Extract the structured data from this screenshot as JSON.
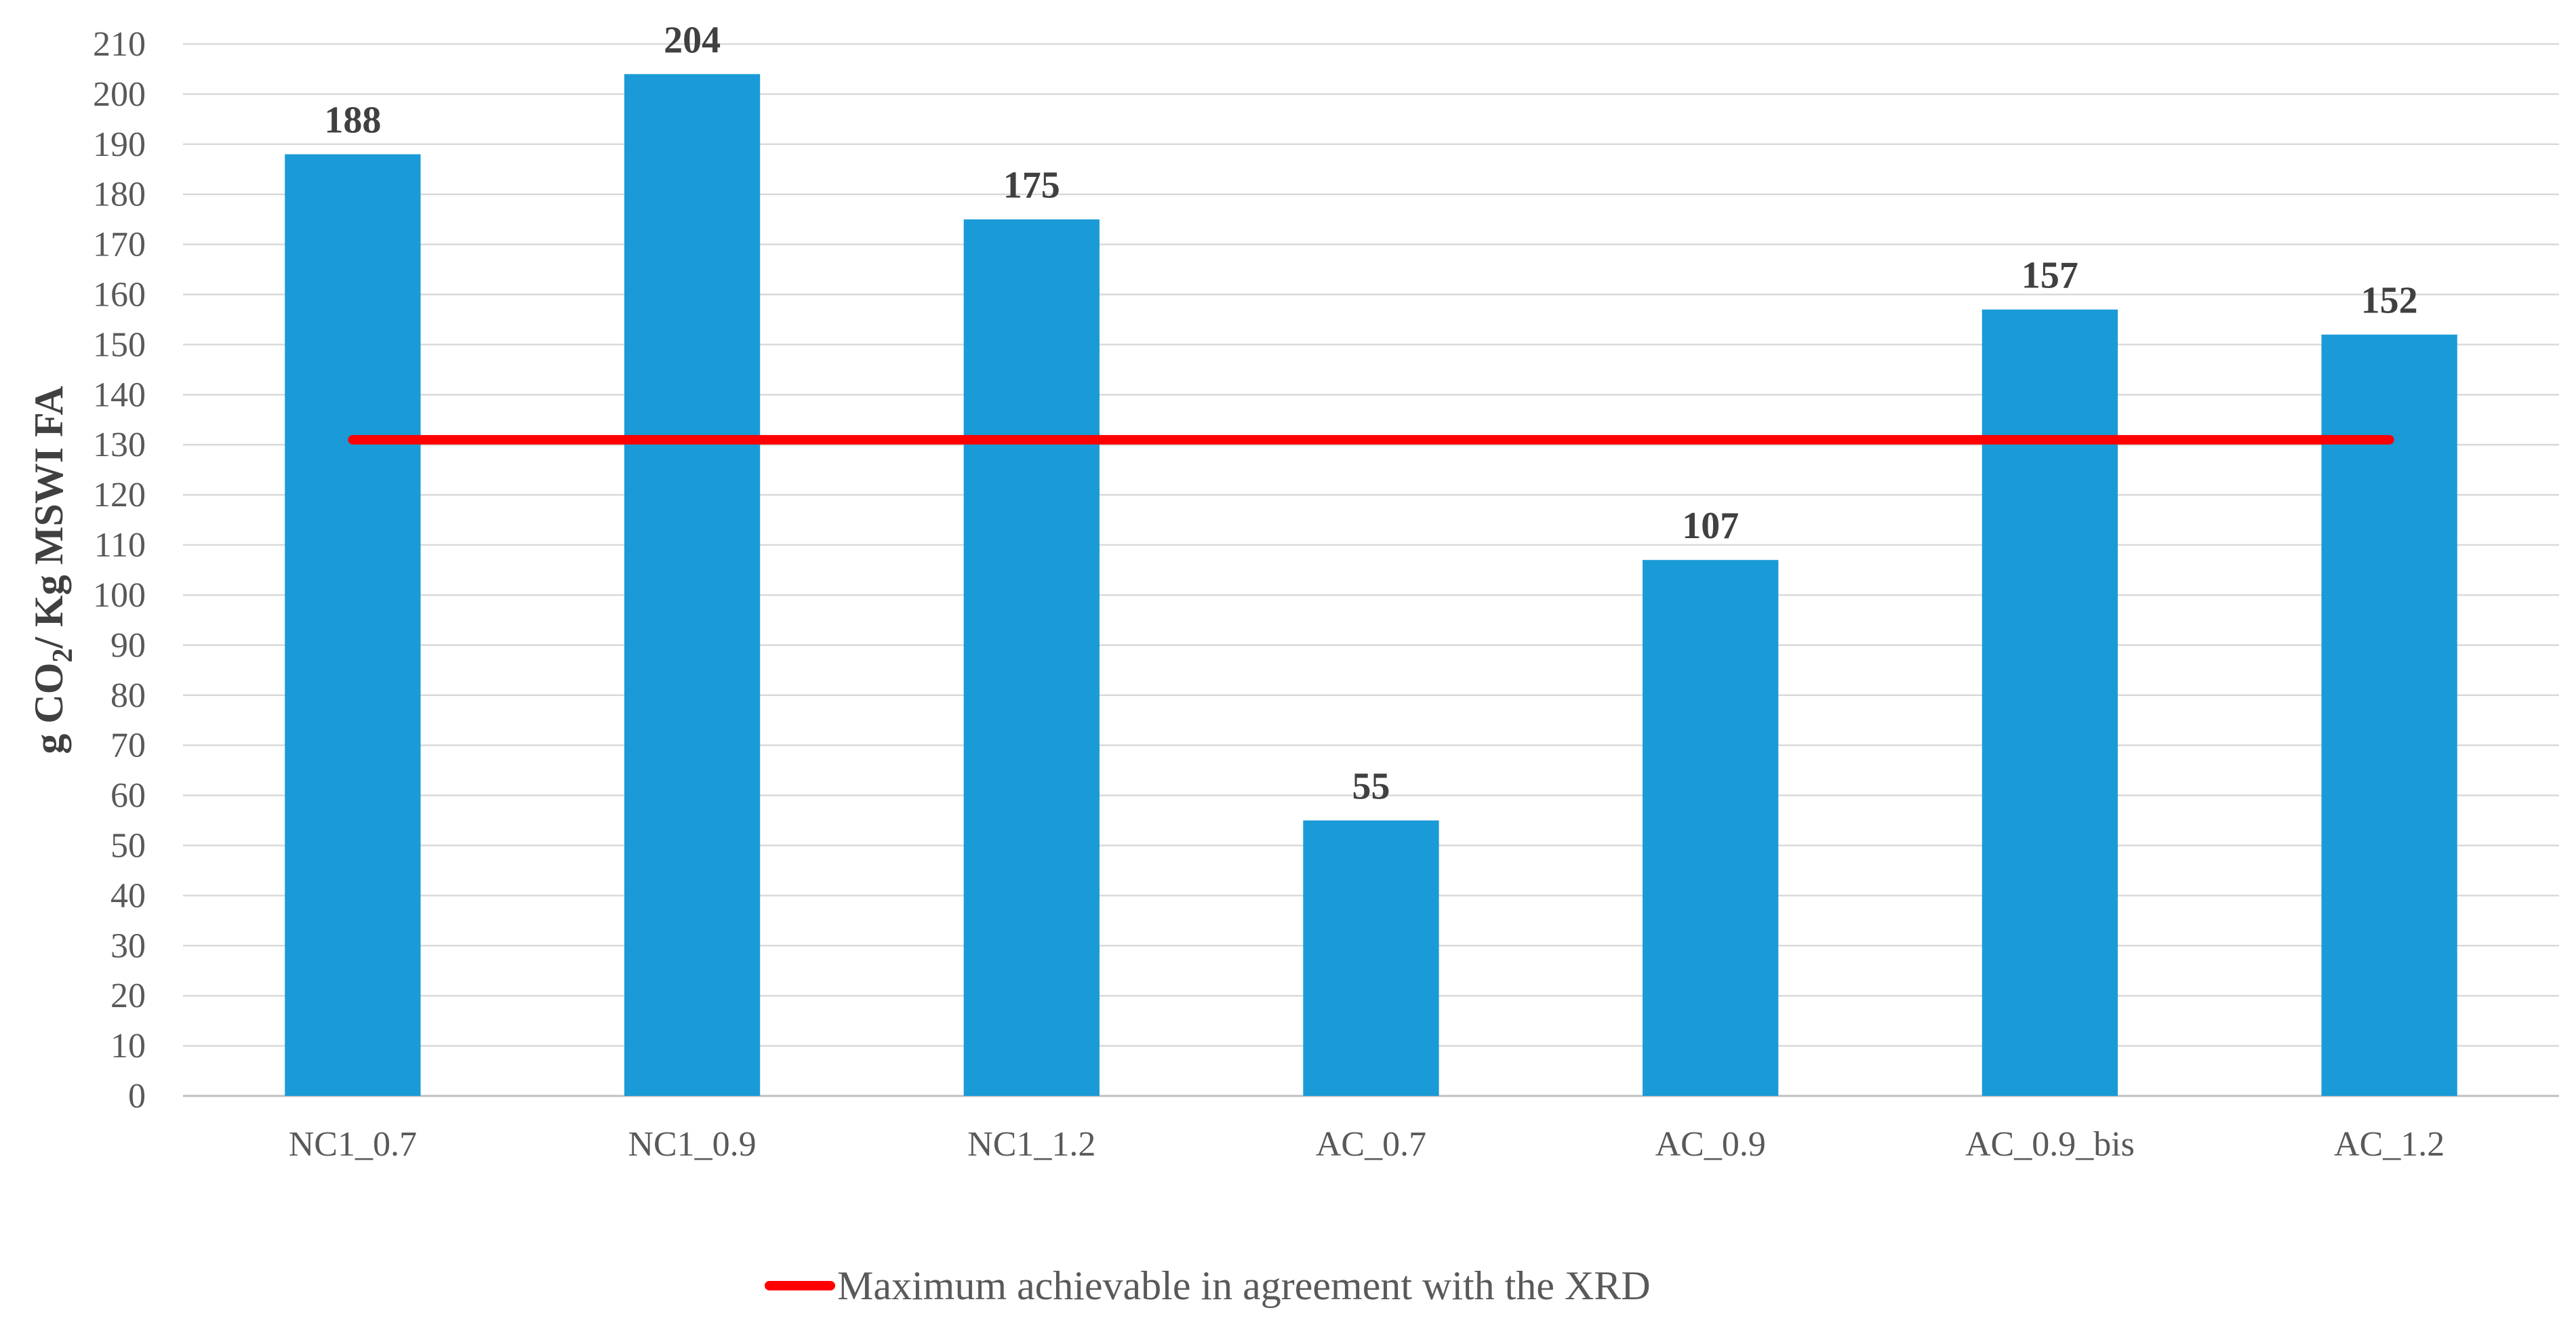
{
  "chart_data": {
    "type": "bar",
    "title": "",
    "xlabel": "",
    "ylabel": {
      "prefix": "g CO",
      "subscript": "2",
      "suffix": "/ Kg MSWI FA"
    },
    "ylim": [
      0,
      210
    ],
    "ytick_step": 10,
    "grid": true,
    "categories": [
      "NC1_0.7",
      "NC1_0.9",
      "NC1_1.2",
      "AC_0.7",
      "AC_0.9",
      "AC_0.9_bis",
      "AC_1.2"
    ],
    "values": [
      188,
      204,
      175,
      55,
      107,
      157,
      152
    ],
    "data_labels": [
      "188",
      "204",
      "175",
      "55",
      "107",
      "157",
      "152"
    ],
    "reference_line": {
      "name": "Maximum achievable in agreement with the XRD",
      "value": 131,
      "from_category": "NC1_0.7",
      "to_category": "AC_1.2"
    },
    "legend": "bottom-center",
    "colors": {
      "bar": "#1a9bd7",
      "reference_line": "#ff0000",
      "grid": "#d9d9d9",
      "axis": "#bfbfbf"
    }
  }
}
